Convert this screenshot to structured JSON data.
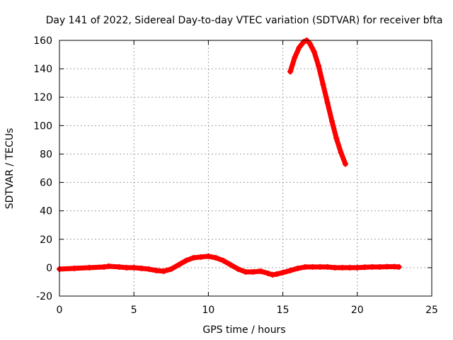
{
  "chart_data": {
    "type": "line",
    "title": "Day 141 of 2022, Sidereal Day-to-day VTEC variation (SDTVAR) for receiver bfta",
    "xlabel": "GPS time / hours",
    "ylabel": "SDTVAR / TECUs",
    "xlim": [
      0,
      25
    ],
    "ylim": [
      -20,
      160
    ],
    "xticks": [
      "0",
      "5",
      "10",
      "15",
      "20",
      "25"
    ],
    "yticks": [
      "-20",
      "0",
      "20",
      "40",
      "60",
      "80",
      "100",
      "120",
      "140",
      "160"
    ],
    "grid": true,
    "legend": "none",
    "series": [
      {
        "color": "#ff0000",
        "x": [
          0,
          1,
          2,
          3,
          3.3,
          4,
          4.5,
          5,
          5.5,
          6,
          6.5,
          7,
          7.5,
          8,
          8.5,
          9,
          9.5,
          10,
          10.5,
          11,
          11.5,
          12,
          12.5,
          13,
          13.5,
          14,
          14.3,
          14.6,
          15,
          15.5,
          16,
          16.5,
          17,
          17.5,
          18,
          18.5,
          19,
          19.5,
          20,
          20.5,
          21,
          21.5,
          22,
          22.5,
          22.8
        ],
        "y": [
          -1,
          -0.5,
          0,
          0.5,
          1,
          0.5,
          0,
          0,
          -0.5,
          -1,
          -2,
          -2.5,
          -1,
          2,
          5,
          7,
          7.5,
          8,
          7,
          5,
          2,
          -1,
          -3,
          -3,
          -2.5,
          -4,
          -5,
          -4.5,
          -3.5,
          -2,
          -0.5,
          0.5,
          0.5,
          0.5,
          0.5,
          0,
          0,
          0,
          0,
          0.3,
          0.5,
          0.5,
          0.7,
          0.7,
          0.5
        ]
      },
      {
        "color": "#ff0000",
        "x": [
          15.5,
          15.8,
          16.1,
          16.4,
          16.6,
          16.8,
          17.1,
          17.4,
          17.7,
          18.0,
          18.3,
          18.6,
          18.9,
          19.2
        ],
        "y": [
          138,
          148,
          155,
          159,
          160,
          158,
          152,
          142,
          129,
          116,
          103,
          91,
          81,
          73
        ]
      }
    ]
  }
}
